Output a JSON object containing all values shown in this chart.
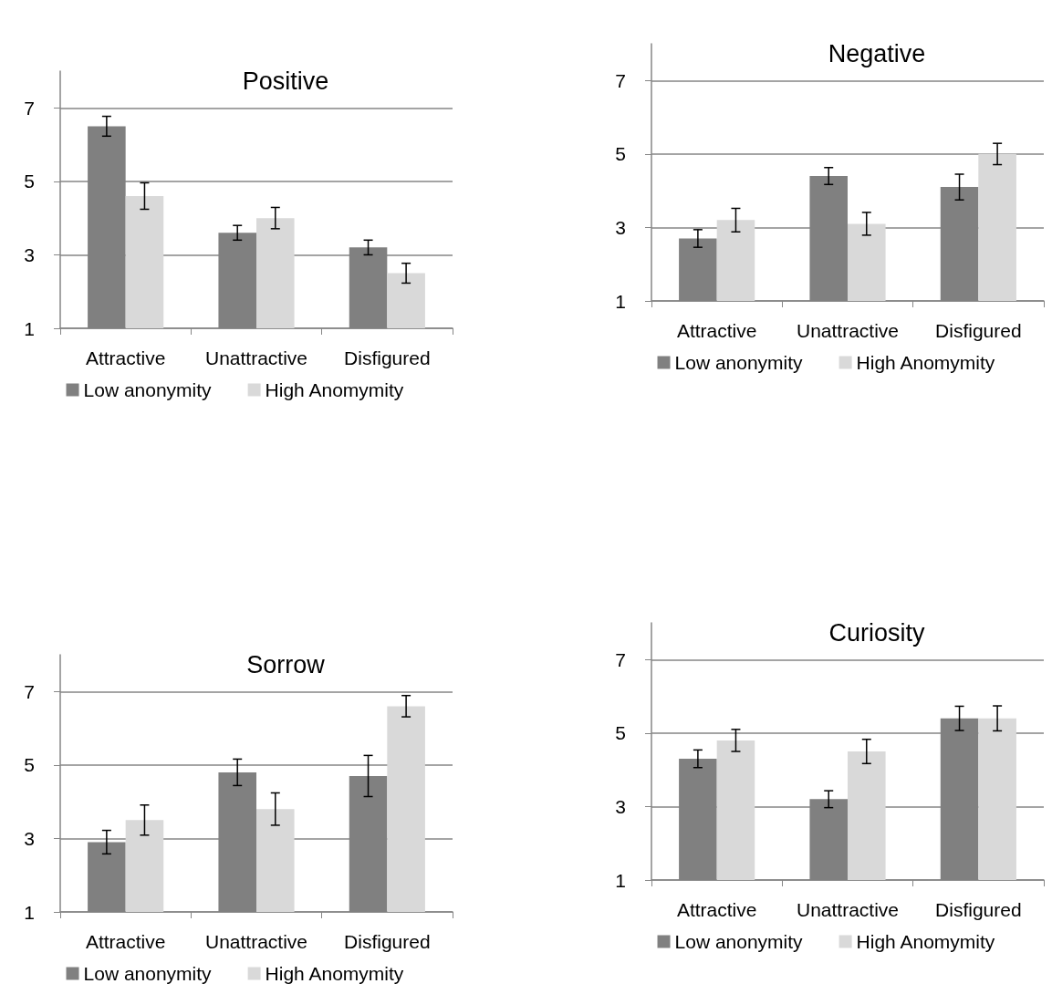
{
  "chart_data": [
    {
      "type": "bar",
      "title": "Positive",
      "categories": [
        "Attractive",
        "Unattractive",
        "Disfigured"
      ],
      "series": [
        {
          "name": "Low anonymity",
          "color": "#808080",
          "values": [
            6.5,
            3.6,
            3.2
          ],
          "errors": [
            0.27,
            0.2,
            0.2
          ]
        },
        {
          "name": "High Anomymity",
          "color": "#d9d9d9",
          "values": [
            4.6,
            4.0,
            2.5
          ],
          "errors": [
            0.36,
            0.29,
            0.27
          ]
        }
      ],
      "ylim": [
        1,
        8
      ],
      "yticks": [
        1,
        3,
        5,
        7
      ],
      "grid": "y",
      "legend": "bottom"
    },
    {
      "type": "bar",
      "title": "Negative",
      "categories": [
        "Attractive",
        "Unattractive",
        "Disfigured"
      ],
      "series": [
        {
          "name": "Low anonymity",
          "color": "#808080",
          "values": [
            2.7,
            4.4,
            4.1
          ],
          "errors": [
            0.24,
            0.23,
            0.35
          ]
        },
        {
          "name": "High Anomymity",
          "color": "#d9d9d9",
          "values": [
            3.2,
            3.1,
            5.0
          ],
          "errors": [
            0.32,
            0.31,
            0.29
          ]
        }
      ],
      "ylim": [
        1,
        8
      ],
      "yticks": [
        1,
        3,
        5,
        7
      ],
      "grid": "y",
      "legend": "bottom"
    },
    {
      "type": "bar",
      "title": "Sorrow",
      "categories": [
        "Attractive",
        "Unattractive",
        "Disfigured"
      ],
      "series": [
        {
          "name": "Low anonymity",
          "color": "#808080",
          "values": [
            2.9,
            4.8,
            4.7
          ],
          "errors": [
            0.32,
            0.36,
            0.56
          ]
        },
        {
          "name": "High Anomymity",
          "color": "#d9d9d9",
          "values": [
            3.5,
            3.8,
            6.6
          ],
          "errors": [
            0.41,
            0.44,
            0.29
          ]
        }
      ],
      "ylim": [
        1,
        8
      ],
      "yticks": [
        1,
        3,
        5,
        7
      ],
      "grid": "y",
      "legend": "bottom"
    },
    {
      "type": "bar",
      "title": "Curiosity",
      "categories": [
        "Attractive",
        "Unattractive",
        "Disfigured"
      ],
      "series": [
        {
          "name": "Low anonymity",
          "color": "#808080",
          "values": [
            4.3,
            3.2,
            5.4
          ],
          "errors": [
            0.24,
            0.23,
            0.33
          ]
        },
        {
          "name": "High Anomymity",
          "color": "#d9d9d9",
          "values": [
            4.8,
            4.5,
            5.4
          ],
          "errors": [
            0.3,
            0.33,
            0.34
          ]
        }
      ],
      "ylim": [
        1,
        8
      ],
      "yticks": [
        1,
        3,
        5,
        7
      ],
      "grid": "y",
      "legend": "bottom"
    }
  ]
}
